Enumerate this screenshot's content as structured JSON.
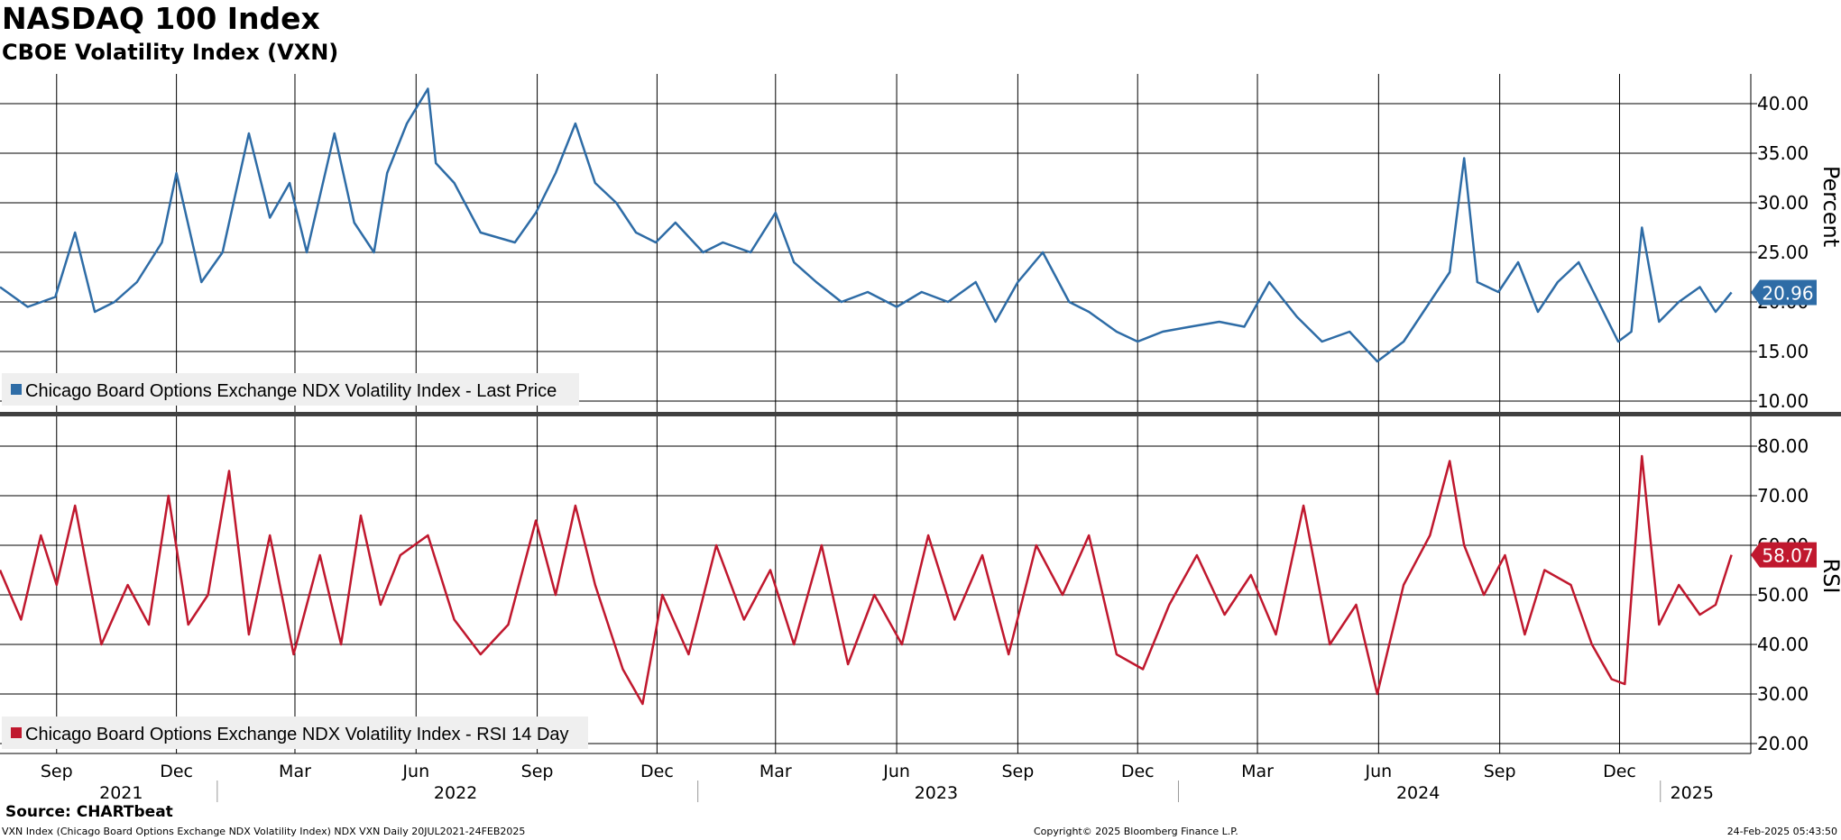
{
  "header": {
    "title": "NASDAQ 100 Index",
    "subtitle": "CBOE Volatility Index (VXN)"
  },
  "footer": {
    "source": "Source: CHARTbeat",
    "description": "VXN Index (Chicago Board Options Exchange NDX Volatility Index) NDX VXN  Daily 20JUL2021-24FEB2025",
    "copyright": "Copyright© 2025 Bloomberg Finance L.P.",
    "timestamp": "24-Feb-2025 05:43:50"
  },
  "colors": {
    "price_line": "#2e6ca6",
    "rsi_line": "#c0182e",
    "grid": "#000000",
    "legend_bg": "#efefef",
    "divider": "#404040"
  },
  "chart_data": [
    {
      "type": "line",
      "panel": "top",
      "ylabel": "Percent",
      "ylim": [
        9,
        43
      ],
      "yticks": [
        "10.00",
        "15.00",
        "20.00",
        "25.00",
        "30.00",
        "35.00",
        "40.00"
      ],
      "last_value_label": "20.96",
      "legend": "Chicago Board Options Exchange NDX Volatility Index - Last Price",
      "grid": true,
      "series": [
        {
          "name": "Chicago Board Options Exchange NDX Volatility Index - Last Price",
          "x": [
            "2021-07-20",
            "2021-08-10",
            "2021-08-31",
            "2021-09-15",
            "2021-09-30",
            "2021-10-15",
            "2021-11-01",
            "2021-11-20",
            "2021-12-01",
            "2021-12-20",
            "2022-01-05",
            "2022-01-25",
            "2022-02-10",
            "2022-02-25",
            "2022-03-10",
            "2022-03-31",
            "2022-04-15",
            "2022-04-30",
            "2022-05-10",
            "2022-05-25",
            "2022-06-10",
            "2022-06-16",
            "2022-06-30",
            "2022-07-20",
            "2022-08-15",
            "2022-08-31",
            "2022-09-15",
            "2022-09-30",
            "2022-10-15",
            "2022-10-31",
            "2022-11-15",
            "2022-11-30",
            "2022-12-15",
            "2023-01-05",
            "2023-01-20",
            "2023-02-10",
            "2023-03-01",
            "2023-03-15",
            "2023-04-01",
            "2023-04-20",
            "2023-05-10",
            "2023-06-01",
            "2023-06-20",
            "2023-07-10",
            "2023-07-31",
            "2023-08-15",
            "2023-09-01",
            "2023-09-20",
            "2023-10-10",
            "2023-10-25",
            "2023-11-15",
            "2023-12-01",
            "2023-12-20",
            "2024-01-10",
            "2024-02-01",
            "2024-02-20",
            "2024-03-10",
            "2024-03-31",
            "2024-04-19",
            "2024-05-10",
            "2024-05-31",
            "2024-06-20",
            "2024-07-10",
            "2024-07-25",
            "2024-08-05",
            "2024-08-15",
            "2024-08-31",
            "2024-09-15",
            "2024-09-30",
            "2024-10-15",
            "2024-10-31",
            "2024-11-15",
            "2024-11-30",
            "2024-12-10",
            "2024-12-18",
            "2024-12-31",
            "2025-01-15",
            "2025-01-31",
            "2025-02-12",
            "2025-02-24"
          ],
          "values": [
            21.5,
            19.5,
            20.5,
            27.0,
            19.0,
            20.0,
            22.0,
            26.0,
            33.0,
            22.0,
            25.0,
            37.0,
            28.5,
            32.0,
            25.0,
            37.0,
            28.0,
            25.0,
            33.0,
            38.0,
            41.5,
            34.0,
            32.0,
            27.0,
            26.0,
            29.0,
            33.0,
            38.0,
            32.0,
            30.0,
            27.0,
            26.0,
            28.0,
            25.0,
            26.0,
            25.0,
            29.0,
            24.0,
            22.0,
            20.0,
            21.0,
            19.5,
            21.0,
            20.0,
            22.0,
            18.0,
            22.0,
            25.0,
            20.0,
            19.0,
            17.0,
            16.0,
            17.0,
            17.5,
            18.0,
            17.5,
            22.0,
            18.5,
            16.0,
            17.0,
            14.0,
            16.0,
            20.0,
            23.0,
            34.5,
            22.0,
            21.0,
            24.0,
            19.0,
            22.0,
            24.0,
            20.0,
            16.0,
            17.0,
            27.5,
            18.0,
            20.0,
            21.5,
            19.0,
            20.96
          ]
        }
      ]
    },
    {
      "type": "line",
      "panel": "bottom",
      "ylabel": "RSI",
      "ylim": [
        18,
        86
      ],
      "yticks": [
        "20.00",
        "30.00",
        "40.00",
        "50.00",
        "60.00",
        "70.00",
        "80.00"
      ],
      "last_value_label": "58.07",
      "legend": "Chicago Board Options Exchange NDX Volatility Index - RSI 14 Day",
      "grid": true,
      "series": [
        {
          "name": "Chicago Board Options Exchange NDX Volatility Index - RSI 14 Day",
          "x": [
            "2021-07-20",
            "2021-08-05",
            "2021-08-20",
            "2021-09-01",
            "2021-09-15",
            "2021-10-05",
            "2021-10-25",
            "2021-11-10",
            "2021-11-25",
            "2021-12-10",
            "2021-12-25",
            "2022-01-10",
            "2022-01-25",
            "2022-02-10",
            "2022-02-28",
            "2022-03-20",
            "2022-04-05",
            "2022-04-20",
            "2022-05-05",
            "2022-05-20",
            "2022-06-10",
            "2022-06-30",
            "2022-07-20",
            "2022-08-10",
            "2022-08-31",
            "2022-09-15",
            "2022-09-30",
            "2022-10-15",
            "2022-11-05",
            "2022-11-20",
            "2022-12-05",
            "2022-12-25",
            "2023-01-15",
            "2023-02-05",
            "2023-02-25",
            "2023-03-15",
            "2023-04-05",
            "2023-04-25",
            "2023-05-15",
            "2023-06-05",
            "2023-06-25",
            "2023-07-15",
            "2023-08-05",
            "2023-08-25",
            "2023-09-15",
            "2023-10-05",
            "2023-10-25",
            "2023-11-15",
            "2023-12-05",
            "2023-12-25",
            "2024-01-15",
            "2024-02-05",
            "2024-02-25",
            "2024-03-15",
            "2024-04-05",
            "2024-04-25",
            "2024-05-15",
            "2024-05-31",
            "2024-06-20",
            "2024-07-10",
            "2024-07-25",
            "2024-08-05",
            "2024-08-20",
            "2024-09-05",
            "2024-09-20",
            "2024-10-05",
            "2024-10-25",
            "2024-11-10",
            "2024-11-25",
            "2024-12-05",
            "2024-12-18",
            "2024-12-31",
            "2025-01-15",
            "2025-01-31",
            "2025-02-12",
            "2025-02-24"
          ],
          "values": [
            55,
            45,
            62,
            52,
            68,
            40,
            52,
            44,
            70,
            44,
            50,
            75,
            42,
            62,
            38,
            58,
            40,
            66,
            48,
            58,
            62,
            45,
            38,
            44,
            65,
            50,
            68,
            52,
            35,
            28,
            50,
            38,
            60,
            45,
            55,
            40,
            60,
            36,
            50,
            40,
            62,
            45,
            58,
            38,
            60,
            50,
            62,
            38,
            35,
            48,
            58,
            46,
            54,
            42,
            68,
            40,
            48,
            30,
            52,
            62,
            77,
            60,
            50,
            58,
            42,
            55,
            52,
            40,
            33,
            32,
            78,
            44,
            52,
            46,
            48,
            58.07
          ]
        }
      ]
    }
  ],
  "x_axis": {
    "month_labels": [
      {
        "label": "Sep",
        "date": "2021-09-01"
      },
      {
        "label": "Dec",
        "date": "2021-12-01"
      },
      {
        "label": "Mar",
        "date": "2022-03-01"
      },
      {
        "label": "Jun",
        "date": "2022-06-01"
      },
      {
        "label": "Sep",
        "date": "2022-09-01"
      },
      {
        "label": "Dec",
        "date": "2022-12-01"
      },
      {
        "label": "Mar",
        "date": "2023-03-01"
      },
      {
        "label": "Jun",
        "date": "2023-06-01"
      },
      {
        "label": "Sep",
        "date": "2023-09-01"
      },
      {
        "label": "Dec",
        "date": "2023-12-01"
      },
      {
        "label": "Mar",
        "date": "2024-03-01"
      },
      {
        "label": "Jun",
        "date": "2024-06-01"
      },
      {
        "label": "Sep",
        "date": "2024-09-01"
      },
      {
        "label": "Dec",
        "date": "2024-12-01"
      }
    ],
    "year_labels": [
      {
        "label": "2021",
        "date": "2021-10-20"
      },
      {
        "label": "2022",
        "date": "2022-07-01"
      },
      {
        "label": "2023",
        "date": "2023-07-01"
      },
      {
        "label": "2024",
        "date": "2024-07-01"
      },
      {
        "label": "2025",
        "date": "2025-01-25"
      }
    ],
    "year_boundaries": [
      "2022-01-01",
      "2023-01-01",
      "2024-01-01",
      "2025-01-01"
    ]
  }
}
